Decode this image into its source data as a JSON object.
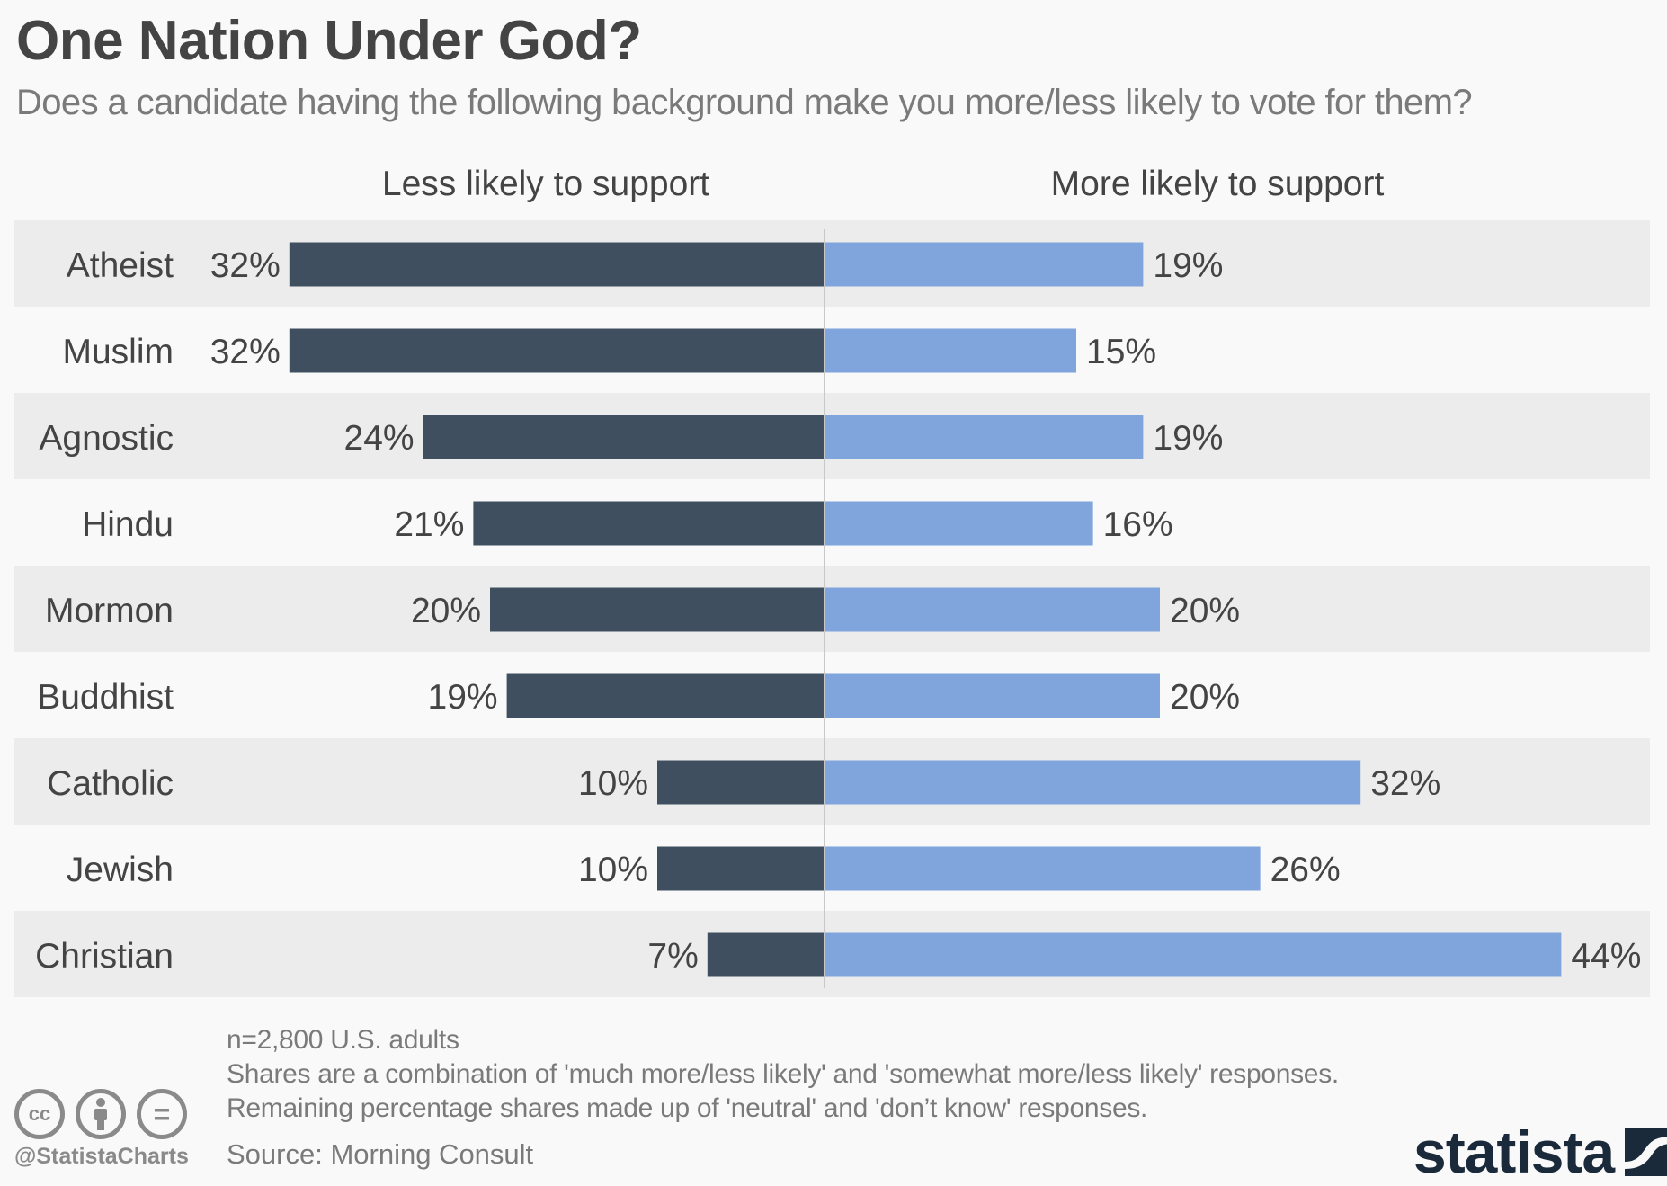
{
  "header": {
    "title": "One Nation Under God?",
    "subtitle": "Does a candidate having the following background make you more/less likely to vote for them?"
  },
  "colors": {
    "less": "#3f4f5f",
    "more": "#7fa5dc",
    "band": "#ececec",
    "divider": "#c8c8c8",
    "label": "#444444"
  },
  "chart_data": {
    "type": "bar",
    "orientation": "horizontal-diverging",
    "title": "One Nation Under God?",
    "subtitle": "Does a candidate having the following background make you more/less likely to vote for them?",
    "categories": [
      "Atheist",
      "Muslim",
      "Agnostic",
      "Hindu",
      "Mormon",
      "Buddhist",
      "Catholic",
      "Jewish",
      "Christian"
    ],
    "series": [
      {
        "name": "Less likely to support",
        "values": [
          32,
          32,
          24,
          21,
          20,
          19,
          10,
          10,
          7
        ],
        "labels": [
          "32%",
          "32%",
          "24%",
          "21%",
          "20%",
          "19%",
          "10%",
          "10%",
          "7%"
        ]
      },
      {
        "name": "More likely to support",
        "values": [
          19,
          15,
          19,
          16,
          20,
          20,
          32,
          26,
          44
        ],
        "labels": [
          "19%",
          "15%",
          "19%",
          "16%",
          "20%",
          "20%",
          "32%",
          "26%",
          "44%"
        ]
      }
    ],
    "unit": "%",
    "xlabel": "",
    "ylabel": "",
    "grid": false,
    "legend": "top (column headers)"
  },
  "footer": {
    "notes": [
      "n=2,800 U.S. adults",
      "Shares are a combination of 'much more/less likely' and 'somewhat more/less likely' responses.",
      "Remaining percentage shares made up of 'neutral' and 'don’t know' responses."
    ],
    "source": "Source: Morning Consult",
    "handle": "@StatistaCharts",
    "logo": "statista",
    "license_icons": [
      "cc-icon",
      "attribution-icon",
      "no-derivatives-icon"
    ],
    "cc_label": "cc",
    "nd_label": "="
  }
}
